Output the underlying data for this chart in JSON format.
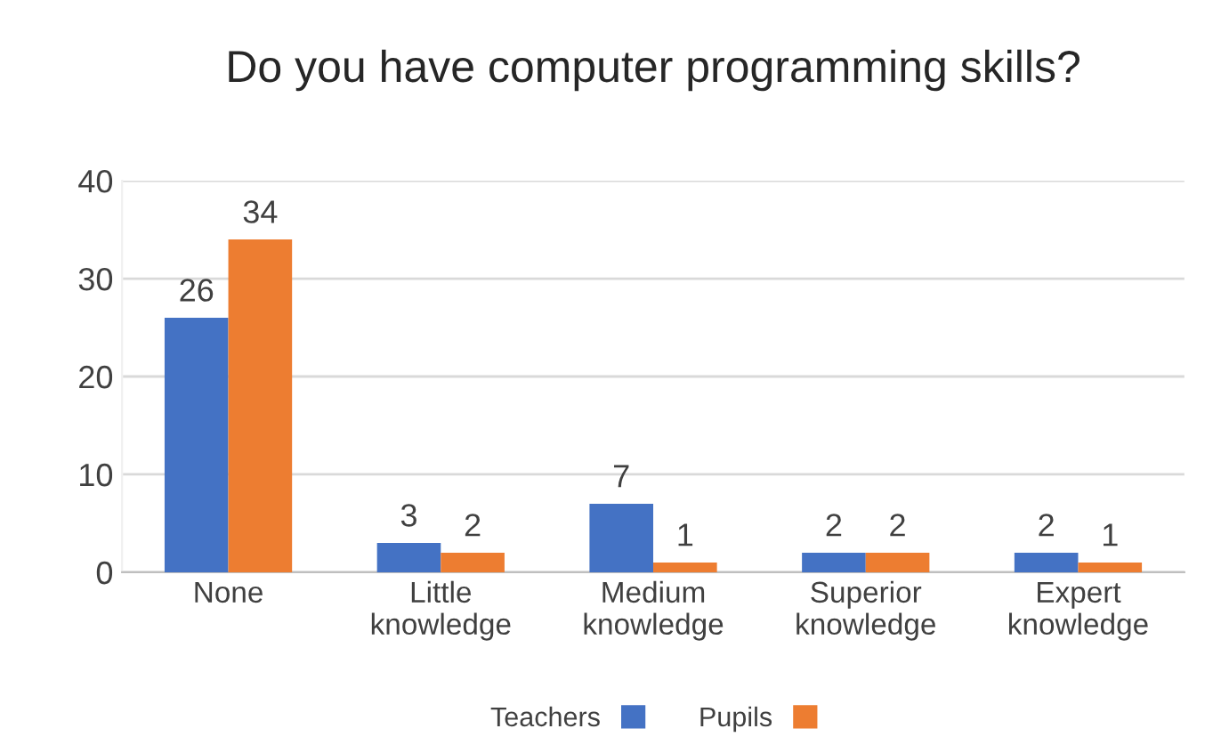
{
  "chart_data": {
    "type": "bar",
    "title": "Do you have computer programming skills?",
    "categories": [
      "None",
      "Little\nknowledge",
      "Medium\nknowledge",
      "Superior\nknowledge",
      "Expert\nknowledge"
    ],
    "series": [
      {
        "name": "Teachers",
        "color": "#4472c4",
        "values": [
          26,
          3,
          7,
          2,
          2
        ]
      },
      {
        "name": "Pupils",
        "color": "#ed7d31",
        "values": [
          34,
          2,
          1,
          2,
          1
        ]
      }
    ],
    "ylim": [
      0,
      40
    ],
    "yticks": [
      0,
      10,
      20,
      30,
      40
    ],
    "grid": "y",
    "legend": "bottom",
    "data_labels": true
  }
}
